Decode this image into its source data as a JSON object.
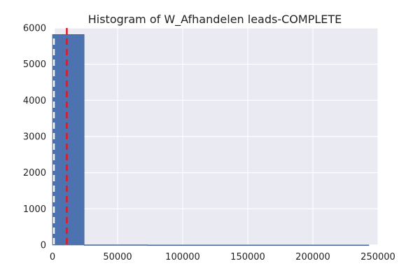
{
  "chart_data": {
    "type": "histogram",
    "title": "Histogram of W_Afhandelen leads-COMPLETE",
    "xlabel": "",
    "ylabel": "",
    "xlim": [
      0,
      250000
    ],
    "ylim": [
      0,
      6000
    ],
    "xticks": [
      0,
      50000,
      100000,
      150000,
      200000,
      250000
    ],
    "xtick_labels": [
      "0",
      "50000",
      "100000",
      "150000",
      "200000",
      "250000"
    ],
    "yticks": [
      0,
      1000,
      2000,
      3000,
      4000,
      5000,
      6000
    ],
    "ytick_labels": [
      "0",
      "1000",
      "2000",
      "3000",
      "4000",
      "5000",
      "6000"
    ],
    "bins": [
      {
        "x0": 0,
        "x1": 24300,
        "count": 5820
      },
      {
        "x0": 24300,
        "x1": 72900,
        "count": 5
      },
      {
        "x0": 72900,
        "x1": 243000,
        "count": 1
      }
    ],
    "vlines": [
      {
        "name": "median",
        "x": 0,
        "color": "#ffffff",
        "style": "dashed"
      },
      {
        "name": "mean",
        "x": 11000,
        "color": "#e8141f",
        "style": "dashed"
      }
    ],
    "grid": true,
    "colors": {
      "background": "#eaeaf2",
      "bar": "#4c72b0",
      "bar_edge": "#38548a",
      "grid": "#ffffff"
    }
  }
}
